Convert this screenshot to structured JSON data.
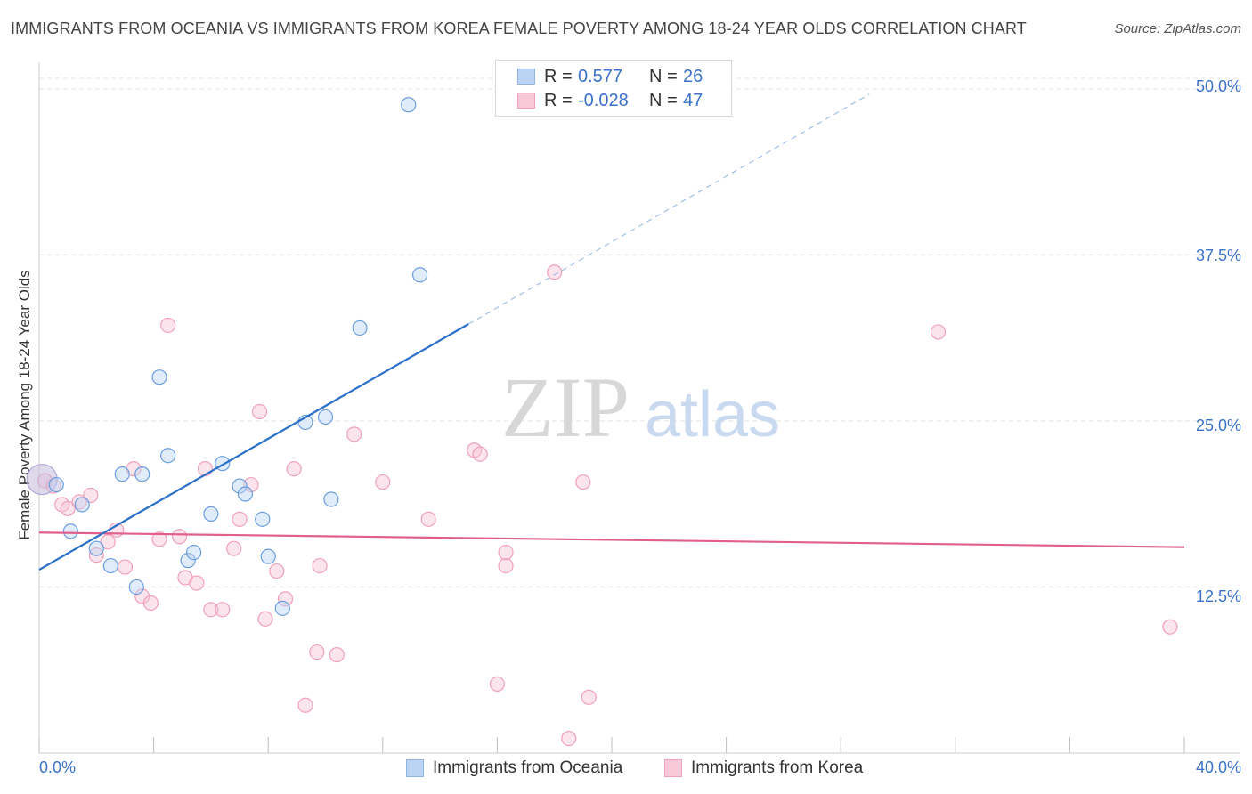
{
  "header": {
    "title": "IMMIGRANTS FROM OCEANIA VS IMMIGRANTS FROM KOREA FEMALE POVERTY AMONG 18-24 YEAR OLDS CORRELATION CHART",
    "source": "Source: ZipAtlas.com"
  },
  "watermark": {
    "zip": "ZIP",
    "atlas": "atlas"
  },
  "legend": {
    "rows": [
      {
        "r_label": "R =",
        "r_value": "0.577",
        "n_label": "N =",
        "n_value": "26"
      },
      {
        "r_label": "R =",
        "r_value": "-0.028",
        "n_label": "N =",
        "n_value": "47"
      }
    ]
  },
  "bottom_legend": {
    "oceania": "Immigrants from Oceania",
    "korea": "Immigrants from Korea"
  },
  "axes": {
    "x_min_label": "0.0%",
    "x_max_label": "40.0%",
    "y_ticks": [
      "12.5%",
      "25.0%",
      "37.5%",
      "50.0%"
    ]
  },
  "chart_data": {
    "type": "scatter",
    "title": "IMMIGRANTS FROM OCEANIA VS IMMIGRANTS FROM KOREA FEMALE POVERTY AMONG 18-24 YEAR OLDS CORRELATION CHART",
    "xlabel": "",
    "ylabel": "Female Poverty Among 18-24 Year Olds",
    "xlim": [
      0,
      40
    ],
    "ylim": [
      0,
      52
    ],
    "y_ticks": [
      12.5,
      25.0,
      37.5,
      50.0
    ],
    "grid": true,
    "legend_position": "top-center",
    "colors": {
      "oceania": "#6a9ee0",
      "korea": "#f0a0bb",
      "oceania_line": "#2a6fc9",
      "korea_line": "#e0608a"
    },
    "series": [
      {
        "name": "Immigrants from Oceania",
        "R": 0.577,
        "N": 26,
        "trend": {
          "x": [
            0,
            15
          ],
          "y": [
            13.8,
            32.3
          ],
          "dashed_to": [
            29,
            49.6
          ]
        },
        "points": [
          [
            0.1,
            20.6
          ],
          [
            0.6,
            20.2
          ],
          [
            1.1,
            16.7
          ],
          [
            1.5,
            18.7
          ],
          [
            2.0,
            15.4
          ],
          [
            2.5,
            14.1
          ],
          [
            2.9,
            21.0
          ],
          [
            3.4,
            12.5
          ],
          [
            3.6,
            21.0
          ],
          [
            4.2,
            28.3
          ],
          [
            4.5,
            22.4
          ],
          [
            5.2,
            14.5
          ],
          [
            5.4,
            15.1
          ],
          [
            6.0,
            18.0
          ],
          [
            6.4,
            21.8
          ],
          [
            7.0,
            20.1
          ],
          [
            7.2,
            19.5
          ],
          [
            7.8,
            17.6
          ],
          [
            8.0,
            14.8
          ],
          [
            8.5,
            10.9
          ],
          [
            9.3,
            24.9
          ],
          [
            10.0,
            25.3
          ],
          [
            10.2,
            19.1
          ],
          [
            11.2,
            32.0
          ],
          [
            12.9,
            48.8
          ],
          [
            13.3,
            36.0
          ]
        ]
      },
      {
        "name": "Immigrants from Korea",
        "R": -0.028,
        "N": 47,
        "trend": {
          "x": [
            0,
            40
          ],
          "y": [
            16.6,
            15.5
          ]
        },
        "points": [
          [
            0.2,
            20.5
          ],
          [
            0.5,
            20.1
          ],
          [
            0.8,
            18.7
          ],
          [
            1.0,
            18.4
          ],
          [
            1.4,
            18.9
          ],
          [
            1.8,
            19.4
          ],
          [
            2.0,
            14.9
          ],
          [
            2.4,
            15.9
          ],
          [
            2.7,
            16.8
          ],
          [
            3.0,
            14.0
          ],
          [
            3.3,
            21.4
          ],
          [
            3.6,
            11.8
          ],
          [
            3.9,
            11.3
          ],
          [
            4.2,
            16.1
          ],
          [
            4.5,
            32.2
          ],
          [
            4.9,
            16.3
          ],
          [
            5.1,
            13.2
          ],
          [
            5.5,
            12.8
          ],
          [
            5.8,
            21.4
          ],
          [
            6.0,
            10.8
          ],
          [
            6.4,
            10.8
          ],
          [
            6.8,
            15.4
          ],
          [
            7.0,
            17.6
          ],
          [
            7.4,
            20.2
          ],
          [
            7.7,
            25.7
          ],
          [
            7.9,
            10.1
          ],
          [
            8.3,
            13.7
          ],
          [
            8.6,
            11.6
          ],
          [
            8.9,
            21.4
          ],
          [
            9.3,
            3.6
          ],
          [
            9.7,
            7.6
          ],
          [
            9.8,
            14.1
          ],
          [
            10.4,
            7.4
          ],
          [
            11.0,
            24.0
          ],
          [
            12.0,
            20.4
          ],
          [
            13.6,
            17.6
          ],
          [
            15.2,
            22.8
          ],
          [
            15.4,
            22.5
          ],
          [
            16.0,
            5.2
          ],
          [
            16.3,
            14.1
          ],
          [
            16.3,
            15.1
          ],
          [
            18.0,
            36.2
          ],
          [
            18.5,
            1.1
          ],
          [
            19.0,
            20.4
          ],
          [
            19.2,
            4.2
          ],
          [
            31.4,
            31.7
          ],
          [
            39.5,
            9.5
          ]
        ]
      }
    ]
  }
}
